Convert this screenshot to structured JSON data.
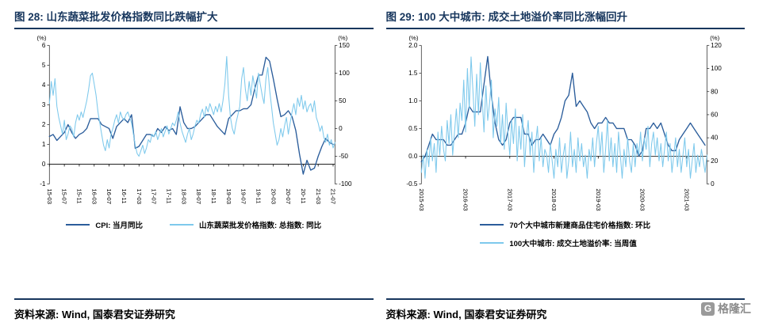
{
  "panels": [
    {
      "title": "图 28:  山东蔬菜批发价格指数同比跌幅扩大",
      "source": "资料来源: Wind, 国泰君安证券研究"
    },
    {
      "title": "图 29: 100 大中城市: 成交土地溢价率同比涨幅回升",
      "source": "资料来源: Wind, 国泰君安证券研究"
    }
  ],
  "logo": {
    "mark": "G",
    "text": "格隆汇"
  },
  "colors": {
    "title_navy": "#17365D",
    "dark_line": "#2B5D9B",
    "light_line": "#7EC9EC"
  },
  "chart_data": [
    {
      "type": "line",
      "title": "图 28: 山东蔬菜批发价格指数同比跌幅扩大",
      "grid": false,
      "legend_position": "bottom",
      "x_span": 76.5,
      "x_labels": [
        "15-03",
        "15-07",
        "15-11",
        "16-03",
        "16-07",
        "16-11",
        "17-03",
        "17-07",
        "17-11",
        "18-03",
        "18-07",
        "18-11",
        "19-03",
        "19-07",
        "19-11",
        "20-03",
        "20-07",
        "20-11",
        "21-03",
        "21-07"
      ],
      "x_label_months": [
        0,
        4,
        8,
        12,
        16,
        20,
        24,
        28,
        32,
        36,
        40,
        44,
        48,
        52,
        56,
        60,
        64,
        68,
        72,
        76
      ],
      "left_axis": {
        "unit": "(%)",
        "min": -1,
        "max": 6,
        "ticks": [
          "6",
          "5",
          "4",
          "3",
          "2",
          "1",
          "0",
          "-1"
        ]
      },
      "right_axis": {
        "unit": "(%)",
        "min": -100,
        "max": 150,
        "ticks": [
          "150",
          "100",
          "50",
          "0",
          "-50",
          "-100"
        ]
      },
      "series": [
        {
          "name": "CPI: 当月同比",
          "axis": "left",
          "color": "#2B5D9B",
          "width": 1.4,
          "step_months": 1,
          "values": [
            1.4,
            1.5,
            1.2,
            1.4,
            1.6,
            2.0,
            1.6,
            1.3,
            1.5,
            1.6,
            1.8,
            2.3,
            2.3,
            2.3,
            2.0,
            1.9,
            1.8,
            1.3,
            1.9,
            2.1,
            2.3,
            2.1,
            2.5,
            0.8,
            0.9,
            1.2,
            1.5,
            1.5,
            1.4,
            1.8,
            1.6,
            1.9,
            1.7,
            1.8,
            1.5,
            2.9,
            2.1,
            1.8,
            1.8,
            1.9,
            2.1,
            2.3,
            2.5,
            2.5,
            2.2,
            1.9,
            1.7,
            1.5,
            2.3,
            2.5,
            2.7,
            2.7,
            2.8,
            2.8,
            3.0,
            3.8,
            4.5,
            4.5,
            5.4,
            5.2,
            4.3,
            3.3,
            2.4,
            2.5,
            2.7,
            2.4,
            1.7,
            0.5,
            -0.5,
            0.2,
            -0.3,
            -0.2,
            0.4,
            0.9,
            1.3,
            1.1,
            1.0
          ]
        },
        {
          "name": "山东蔬菜批发价格指数: 总指数: 同比",
          "axis": "right",
          "color": "#7EC9EC",
          "width": 1.1,
          "step_months": 0.5,
          "values": [
            45,
            85,
            60,
            90,
            40,
            20,
            5,
            -10,
            15,
            -20,
            -10,
            5,
            0,
            -15,
            10,
            25,
            15,
            30,
            20,
            35,
            50,
            70,
            95,
            100,
            80,
            60,
            30,
            10,
            -10,
            -30,
            -40,
            -20,
            -35,
            -10,
            0,
            15,
            25,
            10,
            30,
            20,
            15,
            25,
            30,
            20,
            10,
            -10,
            -30,
            -45,
            -50,
            -40,
            -30,
            -45,
            -35,
            -20,
            -25,
            -10,
            -15,
            -5,
            -20,
            -10,
            0,
            -15,
            -5,
            5,
            -10,
            0,
            10,
            5,
            15,
            30,
            10,
            -5,
            -15,
            -25,
            -10,
            0,
            -20,
            -10,
            5,
            15,
            10,
            25,
            35,
            20,
            40,
            30,
            45,
            35,
            25,
            40,
            30,
            45,
            30,
            50,
            80,
            130,
            60,
            20,
            0,
            -10,
            10,
            25,
            40,
            90,
            110,
            70,
            50,
            85,
            60,
            95,
            75,
            55,
            100,
            80,
            60,
            45,
            90,
            110,
            70,
            40,
            10,
            -10,
            -30,
            -20,
            0,
            -15,
            5,
            20,
            -10,
            10,
            30,
            45,
            25,
            55,
            40,
            60,
            35,
            50,
            30,
            40,
            45,
            30,
            50,
            20,
            10,
            -5,
            5,
            -15,
            -25,
            -10,
            -30,
            -20,
            -35,
            -25
          ]
        }
      ]
    },
    {
      "type": "line",
      "title": "图 29: 100 大中城市: 成交土地溢价率同比涨幅回升",
      "grid": false,
      "legend_position": "bottom",
      "x_span": 77.5,
      "x_labels": [
        "2015-03",
        "2016-03",
        "2017-03",
        "2018-03",
        "2019-03",
        "2020-03",
        "2021-03"
      ],
      "x_label_months": [
        0,
        12,
        24,
        36,
        48,
        60,
        72
      ],
      "left_axis": {
        "unit": "(%)",
        "min": -0.5,
        "max": 2.0,
        "ticks": [
          "2.0",
          "1.5",
          "1.0",
          "0.5",
          "0.0",
          "-0.5"
        ]
      },
      "right_axis": {
        "unit": "(%)",
        "min": 0,
        "max": 120,
        "ticks": [
          "120",
          "100",
          "80",
          "60",
          "40",
          "20",
          "0"
        ]
      },
      "series": [
        {
          "name": "70个大中城市新建商品住宅价格指数: 环比",
          "axis": "left",
          "color": "#2B5D9B",
          "width": 1.4,
          "step_months": 1,
          "values": [
            -0.1,
            0.0,
            0.2,
            0.4,
            0.3,
            0.3,
            0.3,
            0.2,
            0.2,
            0.3,
            0.4,
            0.4,
            0.6,
            0.9,
            0.8,
            0.8,
            0.8,
            1.3,
            1.8,
            1.1,
            0.6,
            0.3,
            0.2,
            0.3,
            0.6,
            0.7,
            0.7,
            0.7,
            0.4,
            0.4,
            0.2,
            0.3,
            0.3,
            0.4,
            0.3,
            0.2,
            0.4,
            0.5,
            0.7,
            1.0,
            1.1,
            1.5,
            0.9,
            1.0,
            0.9,
            0.8,
            0.6,
            0.5,
            0.6,
            0.6,
            0.7,
            0.6,
            0.6,
            0.5,
            0.5,
            0.5,
            0.3,
            0.3,
            0.2,
            0.0,
            0.1,
            0.5,
            0.5,
            0.6,
            0.5,
            0.6,
            0.4,
            0.2,
            0.1,
            0.1,
            0.3,
            0.4,
            0.5,
            0.6,
            0.5,
            0.4,
            0.3,
            0.2
          ]
        },
        {
          "name": "100大中城市: 成交土地溢价率: 当周值",
          "axis": "right",
          "color": "#7EC9EC",
          "width": 1.1,
          "step_months": 0.5,
          "values": [
            10,
            25,
            5,
            30,
            15,
            40,
            20,
            35,
            10,
            45,
            25,
            50,
            30,
            20,
            55,
            35,
            60,
            25,
            45,
            65,
            40,
            70,
            55,
            90,
            45,
            100,
            65,
            110,
            80,
            50,
            95,
            60,
            105,
            75,
            45,
            85,
            55,
            70,
            90,
            40,
            65,
            50,
            75,
            35,
            60,
            30,
            70,
            45,
            25,
            55,
            35,
            65,
            20,
            50,
            30,
            60,
            15,
            40,
            55,
            25,
            45,
            10,
            35,
            50,
            20,
            40,
            15,
            30,
            25,
            10,
            35,
            20,
            5,
            30,
            15,
            40,
            10,
            25,
            35,
            5,
            20,
            45,
            15,
            30,
            10,
            40,
            20,
            35,
            15,
            25,
            5,
            30,
            20,
            40,
            15,
            35,
            50,
            25,
            45,
            10,
            30,
            55,
            20,
            40,
            15,
            35,
            10,
            45,
            25,
            5,
            30,
            15,
            40,
            20,
            10,
            35,
            15,
            35,
            25,
            45,
            20,
            40,
            30,
            50,
            15,
            35,
            45,
            25,
            40,
            20,
            35,
            15,
            30,
            45,
            20,
            35,
            10,
            25,
            40,
            15,
            30,
            10,
            25,
            40,
            15,
            30,
            5,
            20,
            35,
            10,
            25,
            15,
            30,
            20,
            10,
            25
          ]
        }
      ]
    }
  ]
}
